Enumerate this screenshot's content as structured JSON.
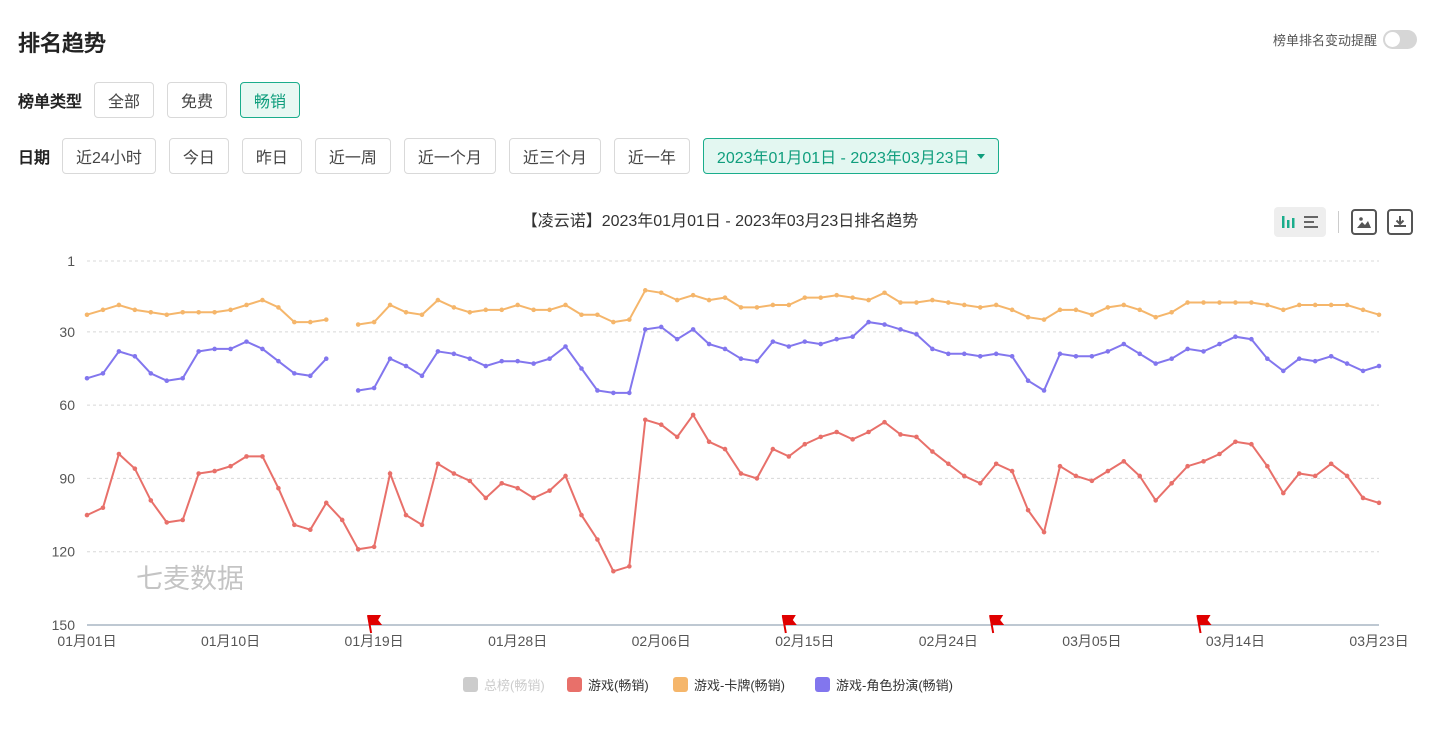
{
  "page": {
    "title": "排名趋势",
    "alert_toggle_label": "榜单排名变动提醒",
    "alert_toggle_on": false
  },
  "chart_type_filter": {
    "label": "榜单类型",
    "options": [
      "全部",
      "免费",
      "畅销"
    ],
    "selected": "畅销"
  },
  "date_filter": {
    "label": "日期",
    "options": [
      "近24小时",
      "今日",
      "昨日",
      "近一周",
      "近一个月",
      "近三个月",
      "近一年"
    ],
    "range": "2023年01月01日 - 2023年03月23日"
  },
  "toolbar": {
    "icons": [
      "bar-chart-icon",
      "list-icon",
      "image-icon",
      "download-icon"
    ]
  },
  "watermark": "七麦数据",
  "colors": {
    "accent": "#1aad8c",
    "total": "#cccccc",
    "game": "#e8706a",
    "card": "#f5b66b",
    "rpg": "#8276ee",
    "flag": "#e00000"
  },
  "chart_data": {
    "type": "line",
    "title": "【凌云诺】2023年01月01日 - 2023年03月23日排名趋势",
    "y_inverted": true,
    "ylim": [
      1,
      150
    ],
    "y_ticks": [
      1,
      30,
      60,
      90,
      120,
      150
    ],
    "x_ticks": [
      "01月01日",
      "01月10日",
      "01月19日",
      "01月28日",
      "02月06日",
      "02月15日",
      "02月24日",
      "03月05日",
      "03月14日",
      "03月23日"
    ],
    "x_start": "2023-01-01",
    "x_end": "2023-03-23",
    "grid": "horizontal-dashed",
    "legend_position": "bottom",
    "event_flags": [
      "2023-01-19",
      "2023-02-14",
      "2023-02-27",
      "2023-03-12"
    ],
    "series": [
      {
        "name": "总榜(畅销)",
        "color": "#cccccc",
        "hidden": true,
        "values": []
      },
      {
        "name": "游戏(畅销)",
        "color": "#e8706a",
        "values": [
          105,
          102,
          80,
          86,
          99,
          108,
          107,
          88,
          87,
          85,
          81,
          81,
          94,
          109,
          111,
          100,
          107,
          119,
          118,
          88,
          105,
          109,
          84,
          88,
          91,
          98,
          92,
          94,
          98,
          95,
          89,
          105,
          115,
          128,
          126,
          66,
          68,
          73,
          64,
          75,
          78,
          88,
          90,
          78,
          81,
          76,
          73,
          71,
          74,
          71,
          67,
          72,
          73,
          79,
          84,
          89,
          92,
          84,
          87,
          103,
          112,
          85,
          89,
          91,
          87,
          83,
          89,
          99,
          92,
          85,
          83,
          80,
          75,
          76,
          85,
          96,
          88,
          89,
          84,
          89,
          98,
          100
        ]
      },
      {
        "name": "游戏-卡牌(畅销)",
        "color": "#f5b66b",
        "values": [
          23,
          21,
          19,
          21,
          22,
          23,
          22,
          22,
          22,
          21,
          19,
          17,
          20,
          26,
          26,
          25,
          null,
          27,
          26,
          19,
          22,
          23,
          17,
          20,
          22,
          21,
          21,
          19,
          21,
          21,
          19,
          23,
          23,
          26,
          25,
          13,
          14,
          17,
          15,
          17,
          16,
          20,
          20,
          19,
          19,
          16,
          16,
          15,
          16,
          17,
          14,
          18,
          18,
          17,
          18,
          19,
          20,
          19,
          21,
          24,
          25,
          21,
          21,
          23,
          20,
          19,
          21,
          24,
          22,
          18,
          18,
          18,
          18,
          18,
          19,
          21,
          19,
          19,
          19,
          19,
          21,
          23
        ]
      },
      {
        "name": "游戏-角色扮演(畅销)",
        "color": "#8276ee",
        "values": [
          49,
          47,
          38,
          40,
          47,
          50,
          49,
          38,
          37,
          37,
          34,
          37,
          42,
          47,
          48,
          41,
          null,
          54,
          53,
          41,
          44,
          48,
          38,
          39,
          41,
          44,
          42,
          42,
          43,
          41,
          36,
          45,
          54,
          55,
          55,
          29,
          28,
          33,
          29,
          35,
          37,
          41,
          42,
          34,
          36,
          34,
          35,
          33,
          32,
          26,
          27,
          29,
          31,
          37,
          39,
          39,
          40,
          39,
          40,
          50,
          54,
          39,
          40,
          40,
          38,
          35,
          39,
          43,
          41,
          37,
          38,
          35,
          32,
          33,
          41,
          46,
          41,
          42,
          40,
          43,
          46,
          44
        ]
      }
    ]
  }
}
